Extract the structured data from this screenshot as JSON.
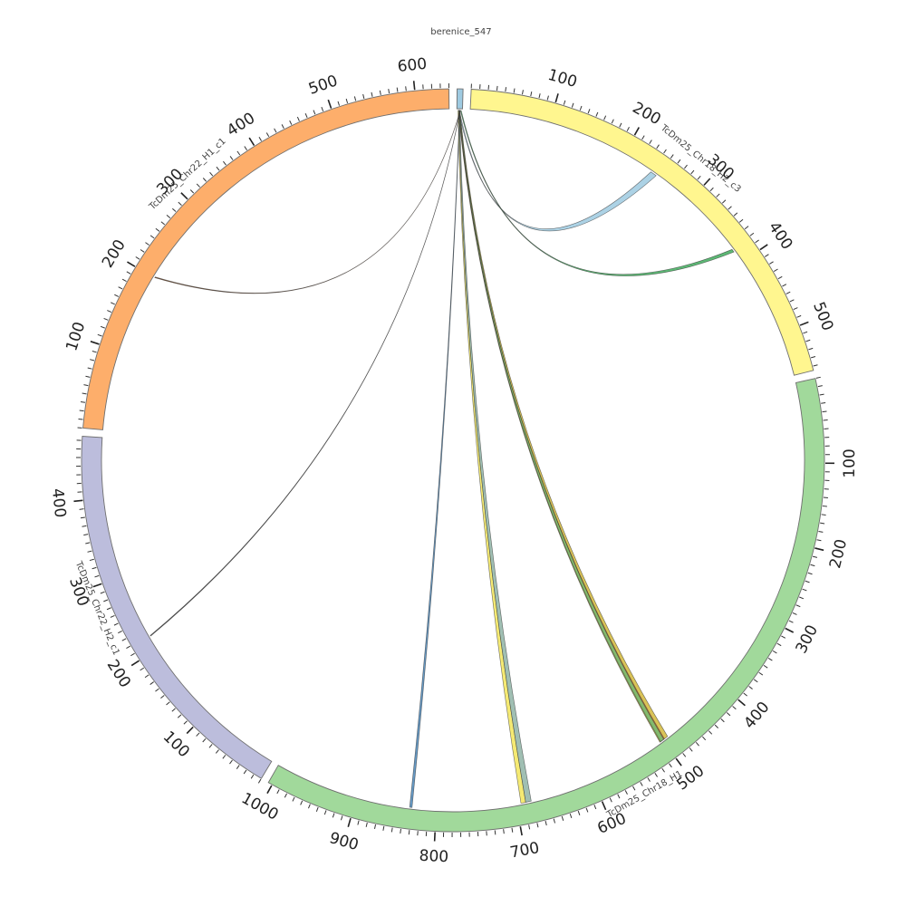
{
  "chart_data": {
    "type": "chord",
    "title": "",
    "tick_interval": 10,
    "label_interval": 100,
    "sequences": [
      {
        "name": "berenice_547",
        "length": 7,
        "color": "#9ecae1",
        "show_ticks": false
      },
      {
        "name": "TcDm25_Chr18_H2_c3",
        "length": 555,
        "color": "#fff68f"
      },
      {
        "name": "TcDm25_Chr18_H1",
        "length": 1005,
        "color": "#a1d99b"
      },
      {
        "name": "TcDm25_Chr22_H2_c1",
        "length": 475,
        "color": "#bcbddc"
      },
      {
        "name": "TcDm25_Chr22_H1_c1",
        "length": 640,
        "color": "#fdae6b"
      }
    ],
    "links": [
      {
        "from_seq": 0,
        "from_start": 2.0,
        "from_end": 3.2,
        "to_seq": 1,
        "to_start": 240,
        "to_end": 248,
        "color": "#9ecae1"
      },
      {
        "from_seq": 0,
        "from_start": 4.5,
        "from_end": 5.5,
        "to_seq": 1,
        "to_start": 380,
        "to_end": 384,
        "color": "#41ab5d"
      },
      {
        "from_seq": 0,
        "from_start": 1.8,
        "from_end": 3.8,
        "to_seq": 2,
        "to_start": 492,
        "to_end": 504,
        "color": "#d4b83a"
      },
      {
        "from_seq": 0,
        "from_start": 2.2,
        "from_end": 3.0,
        "to_seq": 2,
        "to_start": 497,
        "to_end": 502,
        "color": "#e3713a"
      },
      {
        "from_seq": 0,
        "from_start": 2.6,
        "from_end": 3.3,
        "to_seq": 2,
        "to_start": 498,
        "to_end": 503,
        "color": "#74c476"
      },
      {
        "from_seq": 0,
        "from_start": 1.4,
        "from_end": 2.4,
        "to_seq": 2,
        "to_start": 688,
        "to_end": 694,
        "color": "#f3e65a"
      },
      {
        "from_seq": 0,
        "from_start": 2.4,
        "from_end": 3.4,
        "to_seq": 2,
        "to_start": 681,
        "to_end": 688,
        "color": "#8fb4a6"
      },
      {
        "from_seq": 0,
        "from_start": 3.4,
        "from_end": 3.8,
        "to_seq": 2,
        "to_start": 830,
        "to_end": 833,
        "color": "#4a86b8"
      },
      {
        "from_seq": 0,
        "from_start": 3.9,
        "from_end": 4.1,
        "to_seq": 3,
        "to_start": 218,
        "to_end": 219,
        "color": "#333333"
      },
      {
        "from_seq": 0,
        "from_start": 4.1,
        "from_end": 4.3,
        "to_seq": 4,
        "to_start": 201,
        "to_end": 202,
        "color": "#8b4513"
      }
    ]
  }
}
